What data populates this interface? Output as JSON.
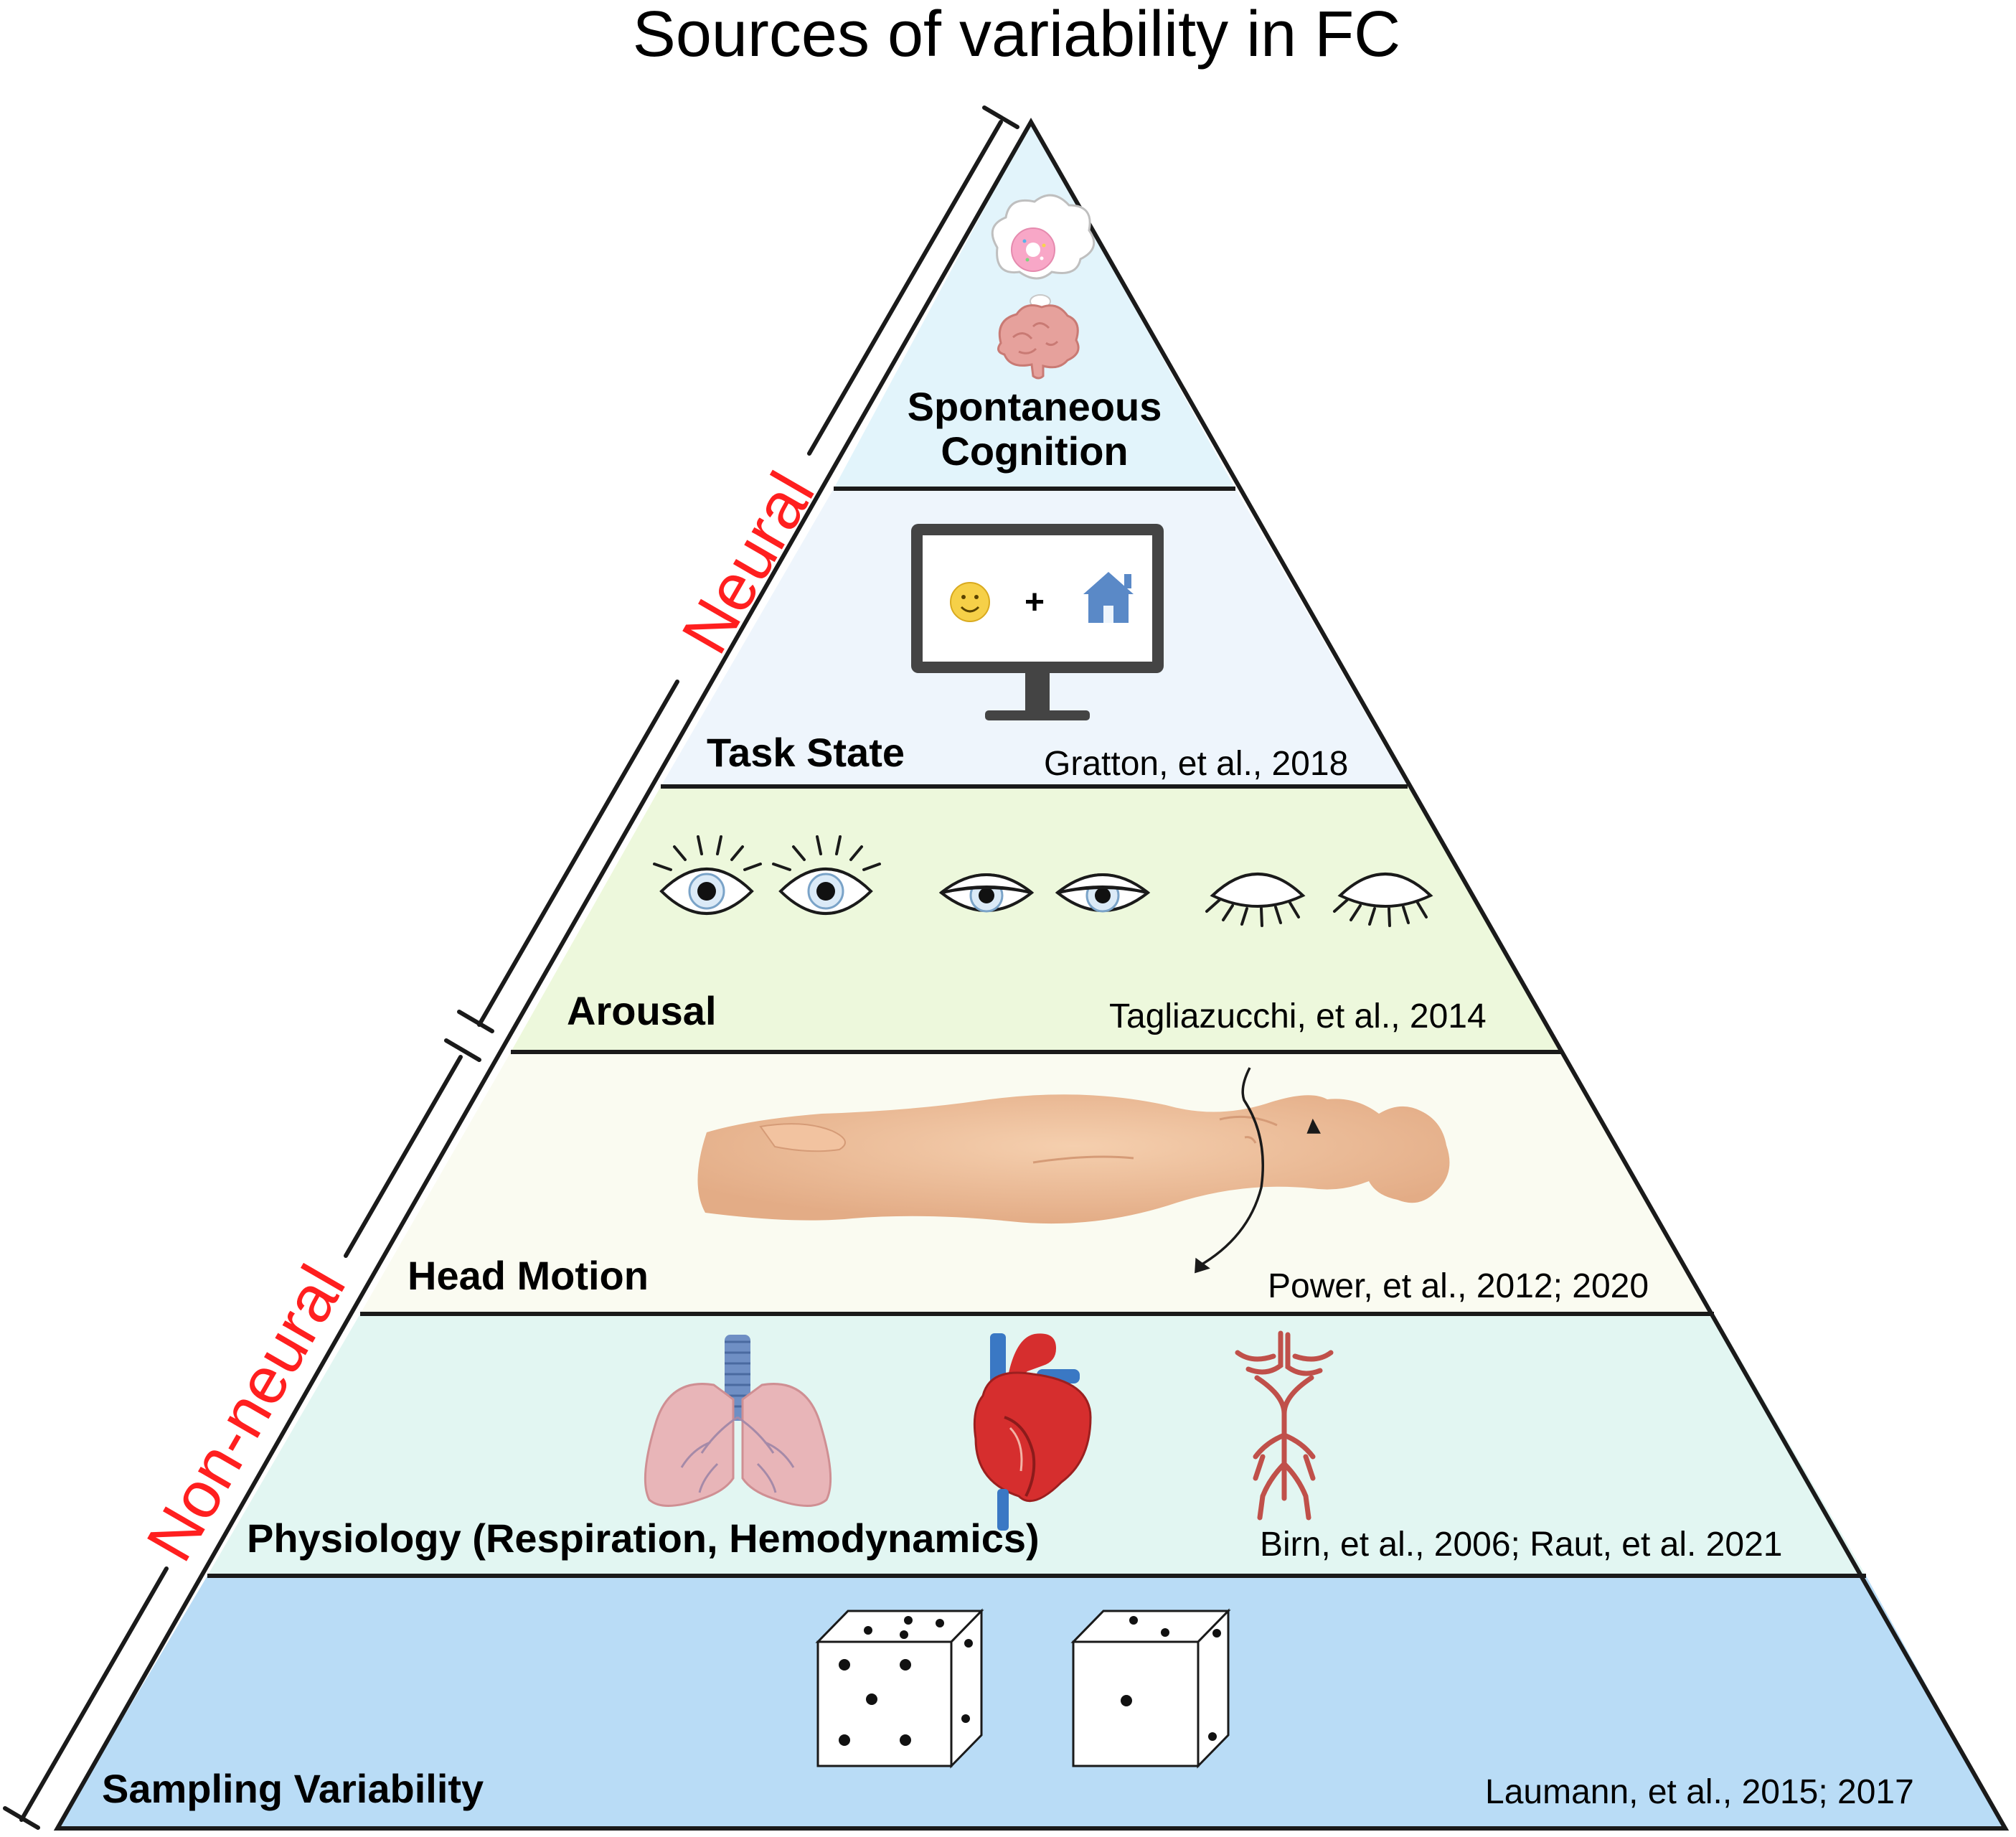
{
  "title": "Sources of variability in FC",
  "side_labels": {
    "neural": "Neural",
    "non_neural": "Non-neural"
  },
  "levels": [
    {
      "label_lines": [
        "Spontaneous",
        "Cognition"
      ],
      "citation": "",
      "color": "#e2f4fb"
    },
    {
      "label": "Task State",
      "citation": "Gratton, et al., 2018",
      "color": "#eef5fc"
    },
    {
      "label": "Arousal",
      "citation": "Tagliazucchi, et al., 2014",
      "color": "#edf8dc"
    },
    {
      "label": "Head Motion",
      "citation": "Power, et al., 2012; 2020",
      "color": "#fafbf1"
    },
    {
      "label": "Physiology (Respiration, Hemodynamics)",
      "citation": "Birn, et al., 2006; Raut, et al. 2021",
      "color": "#e2f6f2"
    },
    {
      "label": "Sampling Variability",
      "citation": "Laumann, et al., 2015; 2017",
      "color": "#b9dcf6"
    }
  ],
  "monitor": {
    "fixation": "+"
  },
  "icons": [
    "donut-thought-icon",
    "brain-icon",
    "monitor-icon",
    "smiley-icon",
    "house-icon",
    "open-eyes-icon",
    "half-closed-eyes-icon",
    "closed-eyes-icon",
    "lying-person-icon",
    "lungs-icon",
    "heart-icon",
    "arteries-icon",
    "dice-icon"
  ]
}
